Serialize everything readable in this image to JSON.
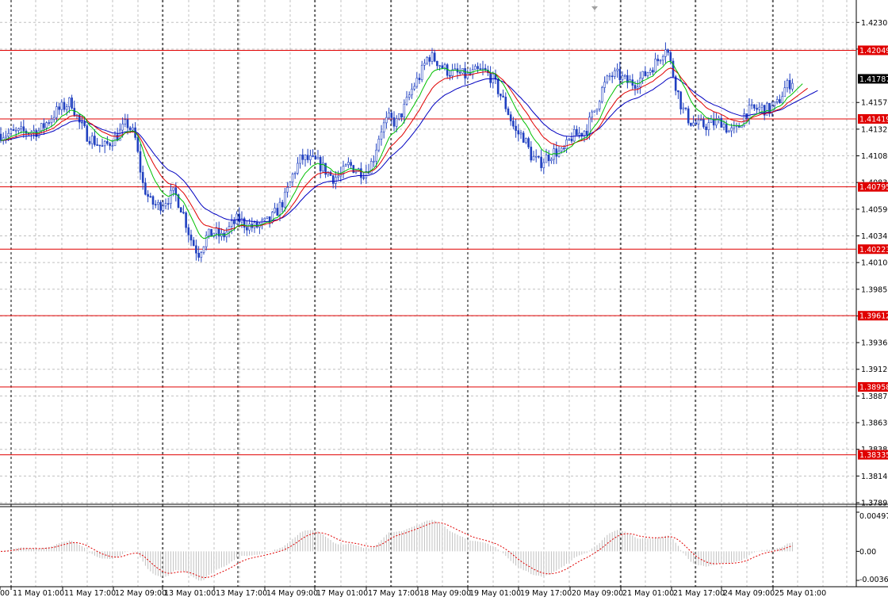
{
  "chart_data": {
    "type": "candlestick",
    "symbol_timeframe": "",
    "ylim": [
      1.37895,
      1.4246
    ],
    "price_ticks": [
      "1.42305",
      "1.42060",
      "1.41570",
      "1.41325",
      "1.41080",
      "1.40835",
      "1.40590",
      "1.40345",
      "1.40100",
      "1.39855",
      "1.39610",
      "1.39365",
      "1.39120",
      "1.38875",
      "1.38630",
      "1.38385",
      "1.38140",
      "1.37895"
    ],
    "horizontal_levels": [
      "1.42049",
      "1.41419",
      "1.40795",
      "1.40223",
      "1.39612",
      "1.38958",
      "1.38335"
    ],
    "current_price": "1.41787",
    "x_labels": [
      "00",
      "11 May 01:00",
      "11 May 17:00",
      "12 May 09:00",
      "13 May 01:00",
      "13 May 17:00",
      "14 May 09:00",
      "17 May 01:00",
      "17 May 17:00",
      "18 May 09:00",
      "19 May 01:00",
      "19 May 17:00",
      "20 May 09:00",
      "21 May 01:00",
      "21 May 17:00",
      "24 May 09:00",
      "25 May 01:00"
    ],
    "price_anchors": {
      "x": [
        0,
        10,
        30,
        50,
        70,
        90,
        100,
        110,
        130,
        150,
        160,
        170,
        180,
        190,
        200,
        210,
        220,
        230,
        240,
        250,
        260,
        270,
        280,
        290,
        300,
        310,
        320,
        330,
        340,
        350,
        360,
        370,
        380,
        390,
        400,
        410,
        420,
        430,
        440,
        450,
        460,
        470,
        480,
        490,
        500,
        510,
        520,
        530,
        540,
        550,
        560,
        570,
        580,
        590,
        600,
        610,
        620,
        630,
        640,
        650,
        660,
        670,
        680,
        690,
        700,
        710,
        720,
        730,
        740,
        750,
        760,
        770,
        780,
        790,
        800,
        810,
        820,
        830,
        840,
        850,
        860,
        870,
        880,
        890,
        900,
        910,
        920,
        930,
        940,
        950,
        960,
        970,
        980,
        990,
        1000
      ],
      "y": [
        1.4128,
        1.4128,
        1.413,
        1.4131,
        1.4148,
        1.4158,
        1.4138,
        1.4127,
        1.4115,
        1.4128,
        1.4138,
        1.4126,
        1.4082,
        1.4065,
        1.4062,
        1.4068,
        1.4074,
        1.4058,
        1.4033,
        1.4018,
        1.4033,
        1.4038,
        1.4033,
        1.4042,
        1.405,
        1.4045,
        1.4042,
        1.4045,
        1.4048,
        1.4058,
        1.407,
        1.4092,
        1.4106,
        1.4104,
        1.4102,
        1.4095,
        1.4088,
        1.409,
        1.41,
        1.4095,
        1.4093,
        1.4103,
        1.4132,
        1.4142,
        1.4138,
        1.4152,
        1.417,
        1.4182,
        1.42,
        1.4196,
        1.4188,
        1.4184,
        1.4183,
        1.4181,
        1.4185,
        1.4186,
        1.418,
        1.4166,
        1.415,
        1.413,
        1.4126,
        1.4108,
        1.4101,
        1.4107,
        1.4112,
        1.411,
        1.4125,
        1.4128,
        1.4133,
        1.415,
        1.417,
        1.4182,
        1.4182,
        1.4176,
        1.4175,
        1.418,
        1.4188,
        1.4196,
        1.421,
        1.418,
        1.4152,
        1.414,
        1.4136,
        1.4136,
        1.4138,
        1.414,
        1.413,
        1.4132,
        1.4148,
        1.415,
        1.4152,
        1.415,
        1.4155,
        1.417,
        1.4178
      ]
    },
    "indicator_levels": [
      "0.004976",
      "0.00",
      "-0.003691"
    ]
  },
  "colors": {
    "background": "#ffffff",
    "grid": "#c0c0c0",
    "separator": "#000000",
    "candles": "#2040c0",
    "ma_fast": "#00c000",
    "ma_mid": "#e00000",
    "ma_slow": "#0000c0",
    "levels": "#e00000",
    "current_price_box": "#000000",
    "histogram": "#c0c0c0",
    "signal": "#e00000"
  }
}
